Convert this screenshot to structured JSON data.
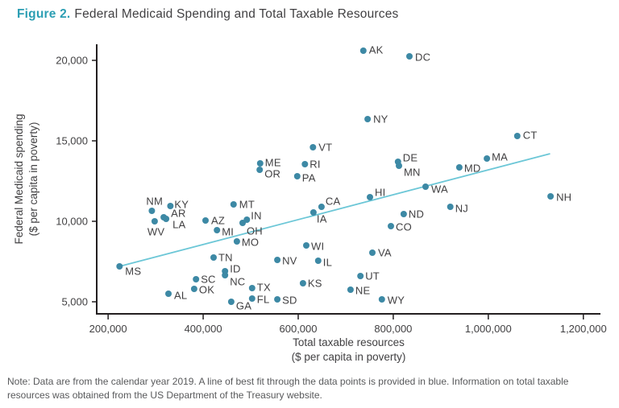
{
  "figure": {
    "label": "Figure 2.",
    "title": "Federal Medicaid Spending and Total Taxable Resources"
  },
  "note": {
    "text": "Note: Data are from the calendar year 2019. A line of best fit through the data points is provided in blue. Information on total taxable resources was obtained from the US Department of the Treasury website."
  },
  "chart_data": {
    "type": "scatter",
    "title": "Federal Medicaid Spending and Total Taxable Resources",
    "xlabel_lines": [
      "Total taxable resources",
      "($ per capita in poverty)"
    ],
    "ylabel_lines": [
      "Federal Medicaid spending",
      "($ per capita in poverty)"
    ],
    "xlim": [
      176000,
      1236000
    ],
    "ylim": [
      4250,
      21000
    ],
    "x_ticks": [
      200000,
      400000,
      600000,
      800000,
      1000000,
      1200000
    ],
    "x_tick_labels": [
      "200,000",
      "400,000",
      "600,000",
      "800,000",
      "1,000,000",
      "1,200,000"
    ],
    "y_ticks": [
      5000,
      10000,
      15000,
      20000
    ],
    "y_tick_labels": [
      "5,000",
      "10,000",
      "15,000",
      "20,000"
    ],
    "grid": false,
    "legend": "none",
    "axis_color": "#231f20",
    "point_color": "#3d89a5",
    "trend_color": "#6cc7d7",
    "trend_line": {
      "x1": 224000,
      "y1": 7200,
      "x2": 1130000,
      "y2": 14200
    },
    "points": [
      {
        "state": "MS",
        "x": 224000,
        "y": 7200,
        "lx": 7,
        "ly": 6
      },
      {
        "state": "NM",
        "x": 292000,
        "y": 10650,
        "lx": -7,
        "ly": -12
      },
      {
        "state": "WV",
        "x": 298000,
        "y": 10000,
        "lx": -9,
        "ly": 13
      },
      {
        "state": "AR",
        "x": 317000,
        "y": 10250,
        "lx": 9,
        "ly": -5
      },
      {
        "state": "LA",
        "x": 322000,
        "y": 10150,
        "lx": 8,
        "ly": 7
      },
      {
        "state": "AL",
        "x": 327000,
        "y": 5500,
        "lx": 7,
        "ly": 2
      },
      {
        "state": "KY",
        "x": 331000,
        "y": 10950,
        "lx": 5,
        "ly": -2
      },
      {
        "state": "OK",
        "x": 381000,
        "y": 5800,
        "lx": 6,
        "ly": 1
      },
      {
        "state": "SC",
        "x": 385000,
        "y": 6400,
        "lx": 6,
        "ly": 0
      },
      {
        "state": "AZ",
        "x": 405000,
        "y": 10050,
        "lx": 7,
        "ly": 0
      },
      {
        "state": "TN",
        "x": 422000,
        "y": 7750,
        "lx": 6,
        "ly": 0
      },
      {
        "state": "MI",
        "x": 429000,
        "y": 9450,
        "lx": 6,
        "ly": 2
      },
      {
        "state": "ID",
        "x": 446000,
        "y": 6900,
        "lx": 6,
        "ly": -3
      },
      {
        "state": "NC",
        "x": 446000,
        "y": 6650,
        "lx": 6,
        "ly": 8
      },
      {
        "state": "GA",
        "x": 459000,
        "y": 5000,
        "lx": 6,
        "ly": 5
      },
      {
        "state": "MT",
        "x": 464000,
        "y": 11050,
        "lx": 7,
        "ly": 0
      },
      {
        "state": "MO",
        "x": 471000,
        "y": 8750,
        "lx": 6,
        "ly": 1
      },
      {
        "state": "OH",
        "x": 483000,
        "y": 9900,
        "lx": 5,
        "ly": 10
      },
      {
        "state": "IN",
        "x": 492000,
        "y": 10100,
        "lx": 5,
        "ly": -5
      },
      {
        "state": "TX",
        "x": 503000,
        "y": 5850,
        "lx": 6,
        "ly": -1
      },
      {
        "state": "FL",
        "x": 503000,
        "y": 5200,
        "lx": 6,
        "ly": 1
      },
      {
        "state": "OR",
        "x": 519000,
        "y": 13200,
        "lx": 6,
        "ly": 5
      },
      {
        "state": "ME",
        "x": 520000,
        "y": 13600,
        "lx": 6,
        "ly": -1
      },
      {
        "state": "SD",
        "x": 556000,
        "y": 5150,
        "lx": 6,
        "ly": 1
      },
      {
        "state": "NV",
        "x": 556000,
        "y": 7600,
        "lx": 6,
        "ly": 1
      },
      {
        "state": "PA",
        "x": 598000,
        "y": 12800,
        "lx": 6,
        "ly": 2
      },
      {
        "state": "KS",
        "x": 610000,
        "y": 6150,
        "lx": 6,
        "ly": 0
      },
      {
        "state": "RI",
        "x": 614000,
        "y": 13550,
        "lx": 6,
        "ly": 0
      },
      {
        "state": "WI",
        "x": 617000,
        "y": 8500,
        "lx": 6,
        "ly": 1
      },
      {
        "state": "VT",
        "x": 631000,
        "y": 14600,
        "lx": 7,
        "ly": 0
      },
      {
        "state": "IA",
        "x": 632000,
        "y": 10550,
        "lx": 4,
        "ly": 8
      },
      {
        "state": "IL",
        "x": 642000,
        "y": 7550,
        "lx": 6,
        "ly": 2
      },
      {
        "state": "CA",
        "x": 649000,
        "y": 10900,
        "lx": 5,
        "ly": -7
      },
      {
        "state": "NE",
        "x": 710000,
        "y": 5750,
        "lx": 6,
        "ly": 1
      },
      {
        "state": "UT",
        "x": 731000,
        "y": 6600,
        "lx": 6,
        "ly": 0
      },
      {
        "state": "AK",
        "x": 737000,
        "y": 20600,
        "lx": 7,
        "ly": -1
      },
      {
        "state": "NY",
        "x": 746000,
        "y": 16350,
        "lx": 7,
        "ly": 0
      },
      {
        "state": "HI",
        "x": 751000,
        "y": 11500,
        "lx": 6,
        "ly": -6
      },
      {
        "state": "VA",
        "x": 756000,
        "y": 8050,
        "lx": 7,
        "ly": 0
      },
      {
        "state": "WY",
        "x": 776000,
        "y": 5150,
        "lx": 7,
        "ly": 1
      },
      {
        "state": "CO",
        "x": 795000,
        "y": 9700,
        "lx": 6,
        "ly": 1
      },
      {
        "state": "DE",
        "x": 810000,
        "y": 13700,
        "lx": 6,
        "ly": -5
      },
      {
        "state": "MN",
        "x": 812000,
        "y": 13450,
        "lx": 6,
        "ly": 8
      },
      {
        "state": "ND",
        "x": 822000,
        "y": 10450,
        "lx": 6,
        "ly": 0
      },
      {
        "state": "DC",
        "x": 834000,
        "y": 20250,
        "lx": 7,
        "ly": 1
      },
      {
        "state": "WA",
        "x": 868000,
        "y": 12150,
        "lx": 7,
        "ly": 3
      },
      {
        "state": "NJ",
        "x": 920000,
        "y": 10900,
        "lx": 6,
        "ly": 2
      },
      {
        "state": "MD",
        "x": 939000,
        "y": 13350,
        "lx": 6,
        "ly": 1
      },
      {
        "state": "MA",
        "x": 997000,
        "y": 13900,
        "lx": 6,
        "ly": -2
      },
      {
        "state": "CT",
        "x": 1061000,
        "y": 15300,
        "lx": 7,
        "ly": -1
      },
      {
        "state": "NH",
        "x": 1131000,
        "y": 11550,
        "lx": 7,
        "ly": 1
      }
    ]
  }
}
